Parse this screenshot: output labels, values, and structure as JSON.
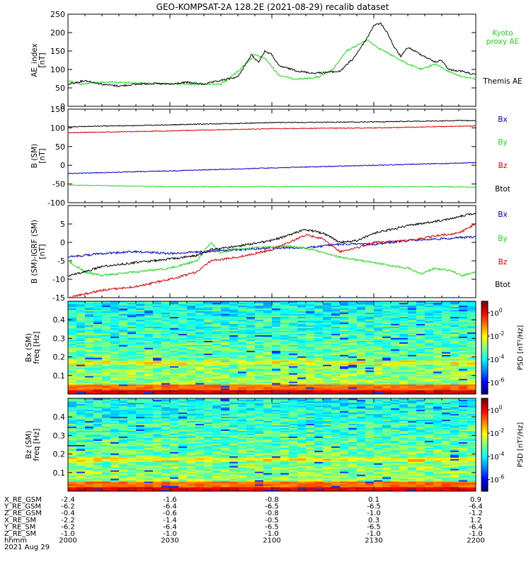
{
  "title": "GEO-KOMPSAT-2A 128.2E (2021-08-29) recalib dataset",
  "colors": {
    "black": "#000000",
    "green": "#22dd22",
    "blue": "#0000cc",
    "red": "#dd0000"
  },
  "panels": {
    "ae": {
      "ylabel": "AE_index",
      "unit": "[nT]",
      "legend": [
        {
          "lines": [
            "Kyoto",
            "proxy AE"
          ],
          "color": "#22dd22"
        },
        {
          "lines": [
            "Themis AE"
          ],
          "color": "#000000"
        }
      ]
    },
    "b": {
      "ylabel": "B (SM)",
      "unit": "[nT]",
      "legend": [
        {
          "lines": [
            "Bx"
          ],
          "color": "#0000cc"
        },
        {
          "lines": [
            "By"
          ],
          "color": "#22dd22"
        },
        {
          "lines": [
            "Bz"
          ],
          "color": "#dd0000"
        },
        {
          "lines": [
            "Btot"
          ],
          "color": "#000000"
        }
      ]
    },
    "db": {
      "ylabel": "B (SM)-IGRF (SM)",
      "unit": "[nT]",
      "legend": [
        {
          "lines": [
            "Bx"
          ],
          "color": "#0000cc"
        },
        {
          "lines": [
            "By"
          ],
          "color": "#22dd22"
        },
        {
          "lines": [
            "Bz"
          ],
          "color": "#dd0000"
        },
        {
          "lines": [
            "Btot"
          ],
          "color": "#000000"
        }
      ]
    },
    "spec_bx": {
      "ylabel": "Bx (SM)",
      "unit": "freq [Hz]",
      "cbar_label": "PSD [nT²/Hz]"
    },
    "spec_bz": {
      "ylabel": "Bz (SM)",
      "unit": "freq [Hz]",
      "cbar_label": "PSD [nT²/Hz]"
    }
  },
  "ephemeris": {
    "rows": [
      {
        "label": "X_RE_GSM",
        "values": [
          "-2.4",
          "-1.6",
          "-0.8",
          "0.1",
          "0.9"
        ]
      },
      {
        "label": "Y_RE_GSM",
        "values": [
          "-6.2",
          "-6.4",
          "-6.5",
          "-6.5",
          "-6.4"
        ]
      },
      {
        "label": "Z_RE_GSM",
        "values": [
          "-0.4",
          "-0.6",
          "-0.8",
          "-1.0",
          "-1.2"
        ]
      },
      {
        "label": "X_RE_SM",
        "values": [
          "-2.2",
          "-1.4",
          "-0.5",
          "0.3",
          "1.2"
        ]
      },
      {
        "label": "Y_RE_SM",
        "values": [
          "-6.2",
          "-6.4",
          "-6.5",
          "-6.5",
          "-6.4"
        ]
      },
      {
        "label": "Z_RE_SM",
        "values": [
          "-1.0",
          "-1.0",
          "-1.0",
          "-1.0",
          "-1.0"
        ]
      },
      {
        "label": "hhmm",
        "values": [
          "2000",
          "2030",
          "2100",
          "2130",
          "2200"
        ]
      }
    ],
    "date": "2021 Aug 29"
  },
  "chart_data": [
    {
      "type": "line",
      "name": "ae",
      "ylabel": "AE_index [nT]",
      "ylim": [
        0,
        250
      ],
      "yticks": [
        0,
        50,
        100,
        150,
        200,
        250
      ],
      "xlim": [
        0,
        120
      ],
      "x_unit": "minutes after 2000 UT",
      "series": [
        {
          "name": "Kyoto proxy AE",
          "color": "#22dd22",
          "x": [
            0,
            4,
            8,
            15,
            25,
            35,
            45,
            50,
            55,
            58,
            62,
            66,
            70,
            74,
            78,
            82,
            88,
            92,
            96,
            100,
            104,
            108,
            112,
            116,
            120
          ],
          "y": [
            70,
            60,
            65,
            65,
            62,
            60,
            60,
            95,
            140,
            130,
            85,
            75,
            75,
            80,
            100,
            150,
            180,
            155,
            135,
            115,
            100,
            115,
            95,
            80,
            75
          ]
        },
        {
          "name": "Themis AE",
          "color": "#000000",
          "x": [
            0,
            5,
            10,
            15,
            20,
            25,
            30,
            35,
            40,
            45,
            50,
            54,
            56,
            58,
            60,
            62,
            64,
            68,
            72,
            76,
            80,
            84,
            88,
            90,
            92,
            94,
            96,
            98,
            100,
            104,
            108,
            110,
            112,
            116,
            120
          ],
          "y": [
            60,
            70,
            60,
            55,
            60,
            62,
            60,
            65,
            60,
            70,
            80,
            140,
            120,
            150,
            140,
            110,
            105,
            95,
            90,
            92,
            95,
            130,
            185,
            220,
            225,
            200,
            160,
            135,
            160,
            140,
            120,
            125,
            100,
            95,
            85
          ]
        }
      ]
    },
    {
      "type": "line",
      "name": "b",
      "ylabel": "B (SM) [nT]",
      "ylim": [
        -100,
        150
      ],
      "yticks": [
        -100,
        -50,
        0,
        50,
        100,
        150
      ],
      "xlim": [
        0,
        120
      ],
      "series": [
        {
          "name": "Bx",
          "color": "#0000cc",
          "x": [
            0,
            30,
            60,
            90,
            120
          ],
          "y": [
            -22,
            -15,
            -7,
            0,
            7
          ]
        },
        {
          "name": "By",
          "color": "#22dd22",
          "x": [
            0,
            30,
            60,
            90,
            120
          ],
          "y": [
            -53,
            -57,
            -57,
            -57,
            -58
          ]
        },
        {
          "name": "Bz",
          "color": "#dd0000",
          "x": [
            0,
            30,
            60,
            90,
            120
          ],
          "y": [
            87,
            92,
            98,
            100,
            105
          ]
        },
        {
          "name": "Btot",
          "color": "#000000",
          "x": [
            0,
            30,
            60,
            90,
            120
          ],
          "y": [
            103,
            108,
            114,
            116,
            120
          ]
        }
      ]
    },
    {
      "type": "line",
      "name": "db",
      "ylabel": "B (SM)-IGRF (SM) [nT]",
      "ylim": [
        -15,
        10
      ],
      "yticks": [
        -15,
        -10,
        -5,
        0,
        5
      ],
      "xlim": [
        0,
        120
      ],
      "series": [
        {
          "name": "Bx",
          "color": "#0000cc",
          "x": [
            0,
            10,
            20,
            30,
            40,
            50,
            60,
            70,
            80,
            90,
            100,
            110,
            120
          ],
          "y": [
            -4.0,
            -3.0,
            -2.5,
            -3.0,
            -2.5,
            -2.0,
            -1.5,
            -1.5,
            -0.5,
            -0.5,
            0.5,
            1.0,
            1.5
          ]
        },
        {
          "name": "By",
          "color": "#22dd22",
          "x": [
            0,
            5,
            10,
            20,
            30,
            38,
            42,
            45,
            48,
            55,
            65,
            72,
            80,
            90,
            100,
            104,
            108,
            112,
            116,
            120
          ],
          "y": [
            -5.0,
            -8.0,
            -9.0,
            -8.0,
            -7.0,
            -5.0,
            0.0,
            -3.0,
            -2.0,
            -1.5,
            -1.0,
            -2.0,
            -4.0,
            -5.5,
            -7.0,
            -8.5,
            -7.0,
            -7.5,
            -9.0,
            -8.0
          ]
        },
        {
          "name": "Bz",
          "color": "#dd0000",
          "x": [
            0,
            5,
            10,
            20,
            30,
            38,
            42,
            50,
            60,
            70,
            75,
            80,
            85,
            90,
            100,
            110,
            115,
            120
          ],
          "y": [
            -15.0,
            -14.0,
            -13.0,
            -12.0,
            -10.0,
            -8.0,
            -5.0,
            -4.0,
            -2.0,
            2.0,
            1.0,
            -2.5,
            -1.5,
            0.0,
            0.5,
            2.0,
            2.5,
            5.0
          ]
        },
        {
          "name": "Btot",
          "color": "#000000",
          "x": [
            0,
            5,
            10,
            20,
            30,
            38,
            42,
            50,
            60,
            70,
            75,
            80,
            85,
            90,
            100,
            110,
            115,
            120
          ],
          "y": [
            -9.0,
            -8.0,
            -6.5,
            -5.5,
            -4.5,
            -3.5,
            -2.0,
            -1.0,
            0.5,
            3.5,
            2.5,
            0.0,
            0.5,
            2.5,
            4.5,
            6.0,
            7.0,
            8.0
          ]
        }
      ]
    },
    {
      "type": "heatmap",
      "name": "spec_bx",
      "ylabel": "Bx (SM) freq [Hz]",
      "ylim": [
        0,
        0.5
      ],
      "yticks": [
        0.1,
        0.2,
        0.3,
        0.4
      ],
      "colorbar": {
        "label": "PSD [nT²/Hz]",
        "ticks": [
          "10^0",
          "10^-2",
          "10^-4",
          "10^-6"
        ],
        "log_range": [
          -7,
          1
        ]
      }
    },
    {
      "type": "heatmap",
      "name": "spec_bz",
      "ylabel": "Bz (SM) freq [Hz]",
      "ylim": [
        0,
        0.5
      ],
      "yticks": [
        0.1,
        0.2,
        0.3,
        0.4
      ],
      "colorbar": {
        "label": "PSD [nT²/Hz]",
        "ticks": [
          "10^0",
          "10^-2",
          "10^-4",
          "10^-6"
        ],
        "log_range": [
          -7,
          1
        ]
      }
    }
  ]
}
